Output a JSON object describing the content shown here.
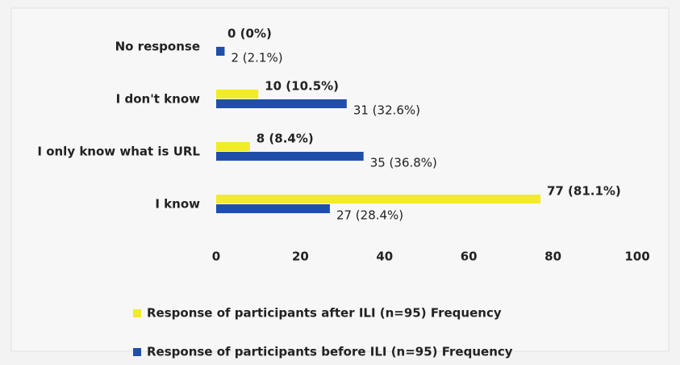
{
  "chart_data": {
    "type": "bar",
    "orientation": "horizontal",
    "categories": [
      "No response",
      "I don't know",
      "I only know what is URL",
      "I know"
    ],
    "series": [
      {
        "name": "Response of participants after ILI (n=95) Frequency",
        "color": "#f2ea2c",
        "values": [
          0,
          10,
          8,
          77
        ],
        "value_labels": [
          "0 (0%)",
          "10 (10.5%)",
          "8 (8.4%)",
          "77 (81.1%)"
        ]
      },
      {
        "name": "Response of participants before ILI (n=95) Frequency",
        "color": "#1f4fa8",
        "values": [
          2,
          31,
          35,
          27
        ],
        "value_labels": [
          "2 (2.1%)",
          "31 (32.6%)",
          "35 (36.8%)",
          "27 (28.4%)"
        ]
      }
    ],
    "xlim": [
      0,
      100
    ],
    "xticks": [
      0,
      20,
      40,
      60,
      80,
      100
    ],
    "grid": false,
    "legend": "bottom"
  }
}
